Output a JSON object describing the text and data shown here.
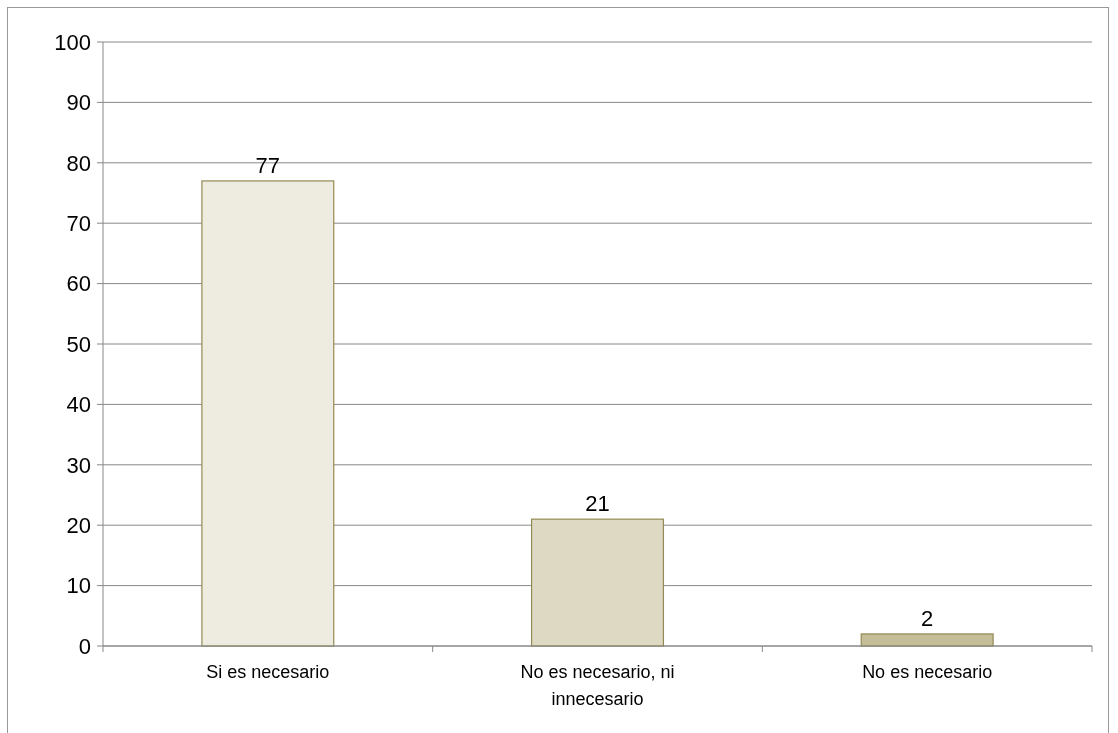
{
  "chart_data": {
    "type": "bar",
    "categories": [
      "Si es necesario",
      "No es necesario, ni innecesario",
      "No es necesario"
    ],
    "values": [
      77,
      21,
      2
    ],
    "colors": [
      "#eeece1",
      "#ddd9c3",
      "#c4bd97"
    ],
    "ylim": [
      0,
      100
    ],
    "yticks": [
      0,
      10,
      20,
      30,
      40,
      50,
      60,
      70,
      80,
      90,
      100
    ],
    "grid": "y",
    "data_labels": true
  }
}
